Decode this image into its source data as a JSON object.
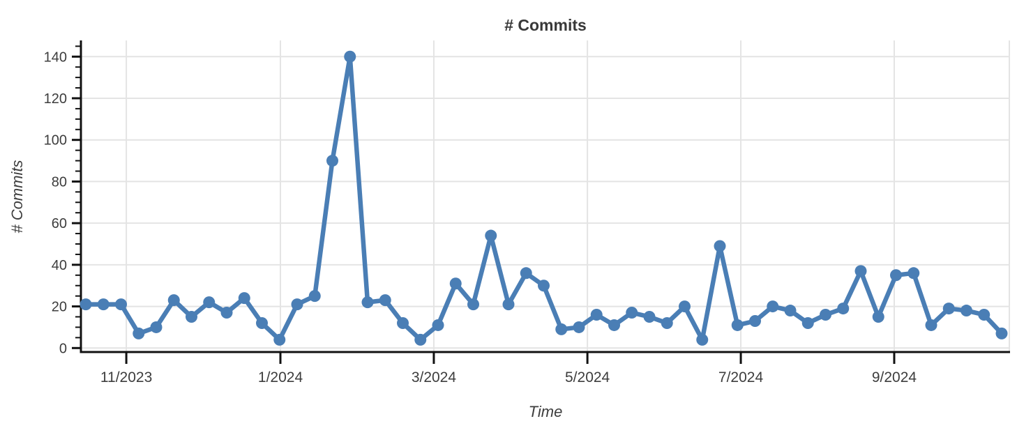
{
  "chart_data": {
    "type": "line",
    "title": "# Commits",
    "xlabel": "Time",
    "ylabel": "# Commits",
    "x_tick_labels": [
      "11/2023",
      "1/2024",
      "3/2024",
      "5/2024",
      "7/2024",
      "9/2024"
    ],
    "x_tick_positions_in_point_index": [
      2.3,
      11.05,
      19.76,
      28.48,
      37.19,
      45.9
    ],
    "y_ticks": [
      0,
      20,
      40,
      60,
      80,
      100,
      120,
      140
    ],
    "y_tick_labels": [
      "0",
      "20",
      "40",
      "60",
      "80",
      "100",
      "120",
      "140"
    ],
    "y_minor_tick_step": 5,
    "ylim": [
      0,
      149
    ],
    "grid": true,
    "legend_position": "none",
    "marker_style": "filled-circle",
    "series": [
      {
        "name": "# Commits",
        "color": "#4a7eb5",
        "values": [
          21,
          21,
          21,
          7,
          10,
          23,
          15,
          22,
          17,
          24,
          12,
          4,
          21,
          25,
          90,
          140,
          22,
          23,
          12,
          4,
          11,
          31,
          21,
          54,
          21,
          36,
          30,
          9,
          10,
          16,
          11,
          17,
          15,
          12,
          20,
          4,
          49,
          11,
          13,
          20,
          18,
          12,
          16,
          19,
          37,
          15,
          35,
          36,
          11,
          19,
          18,
          16,
          7
        ]
      }
    ]
  },
  "style": {
    "line_color": "#4a7eb5",
    "grid_color": "#e4e4e4",
    "axis_color": "#111111",
    "label_color": "#3d3d3d",
    "background": "#ffffff"
  }
}
